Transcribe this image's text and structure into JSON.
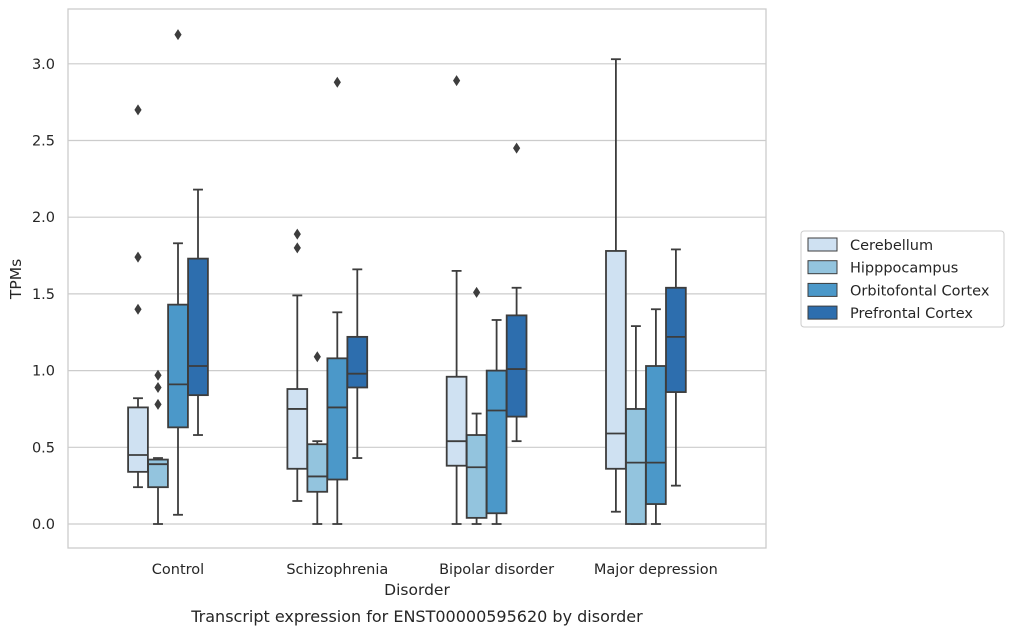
{
  "chart_data": {
    "type": "box",
    "caption": "Transcript expression for ENST00000595620 by disorder",
    "xlabel": "Disorder",
    "ylabel": "TPMs",
    "ylim": [
      -0.15,
      3.35
    ],
    "yticks": [
      "0.0",
      "0.5",
      "1.0",
      "1.5",
      "2.0",
      "2.5",
      "3.0"
    ],
    "ytick_values": [
      0,
      0.5,
      1.0,
      1.5,
      2.0,
      2.5,
      3.0
    ],
    "grid": "horizontal",
    "legend_position": "right",
    "categories": [
      "Control",
      "Schizophrenia",
      "Bipolar disorder",
      "Major depression"
    ],
    "series": [
      {
        "name": "Cerebellum",
        "color": "#cfe1f2",
        "boxes": [
          {
            "whislo": 0.24,
            "q1": 0.34,
            "med": 0.45,
            "q3": 0.76,
            "whishi": 0.82,
            "fliers": [
              1.4,
              1.74,
              2.7
            ]
          },
          {
            "whislo": 0.15,
            "q1": 0.36,
            "med": 0.75,
            "q3": 0.88,
            "whishi": 1.49,
            "fliers": [
              1.8,
              1.89
            ]
          },
          {
            "whislo": 0.0,
            "q1": 0.38,
            "med": 0.54,
            "q3": 0.96,
            "whishi": 1.65,
            "fliers": [
              2.89
            ]
          },
          {
            "whislo": 0.08,
            "q1": 0.36,
            "med": 0.59,
            "q3": 1.78,
            "whishi": 3.03,
            "fliers": []
          }
        ]
      },
      {
        "name": "Hipppocampus",
        "color": "#93c4de",
        "boxes": [
          {
            "whislo": 0.0,
            "q1": 0.24,
            "med": 0.39,
            "q3": 0.42,
            "whishi": 0.43,
            "fliers": [
              0.78,
              0.89,
              0.97
            ]
          },
          {
            "whislo": 0.0,
            "q1": 0.21,
            "med": 0.31,
            "q3": 0.52,
            "whishi": 0.54,
            "fliers": [
              1.09
            ]
          },
          {
            "whislo": 0.0,
            "q1": 0.04,
            "med": 0.37,
            "q3": 0.58,
            "whishi": 0.72,
            "fliers": [
              1.51
            ]
          },
          {
            "whislo": 0.0,
            "q1": 0.0,
            "med": 0.4,
            "q3": 0.75,
            "whishi": 1.29,
            "fliers": []
          }
        ]
      },
      {
        "name": "Orbitofontal Cortex",
        "color": "#4b98c9",
        "boxes": [
          {
            "whislo": 0.06,
            "q1": 0.63,
            "med": 0.91,
            "q3": 1.43,
            "whishi": 1.83,
            "fliers": [
              3.19
            ]
          },
          {
            "whislo": 0.0,
            "q1": 0.29,
            "med": 0.76,
            "q3": 1.08,
            "whishi": 1.38,
            "fliers": [
              2.88
            ]
          },
          {
            "whislo": 0.0,
            "q1": 0.07,
            "med": 0.74,
            "q3": 1.0,
            "whishi": 1.33,
            "fliers": []
          },
          {
            "whislo": 0.0,
            "q1": 0.13,
            "med": 0.4,
            "q3": 1.03,
            "whishi": 1.4,
            "fliers": []
          }
        ]
      },
      {
        "name": "Prefrontal Cortex",
        "color": "#2d6eae",
        "boxes": [
          {
            "whislo": 0.58,
            "q1": 0.84,
            "med": 1.03,
            "q3": 1.73,
            "whishi": 2.18,
            "fliers": []
          },
          {
            "whislo": 0.43,
            "q1": 0.89,
            "med": 0.98,
            "q3": 1.22,
            "whishi": 1.66,
            "fliers": []
          },
          {
            "whislo": 0.54,
            "q1": 0.7,
            "med": 1.01,
            "q3": 1.36,
            "whishi": 1.54,
            "fliers": [
              2.45
            ]
          },
          {
            "whislo": 0.25,
            "q1": 0.86,
            "med": 1.22,
            "q3": 1.54,
            "whishi": 1.79,
            "fliers": []
          }
        ]
      }
    ]
  }
}
